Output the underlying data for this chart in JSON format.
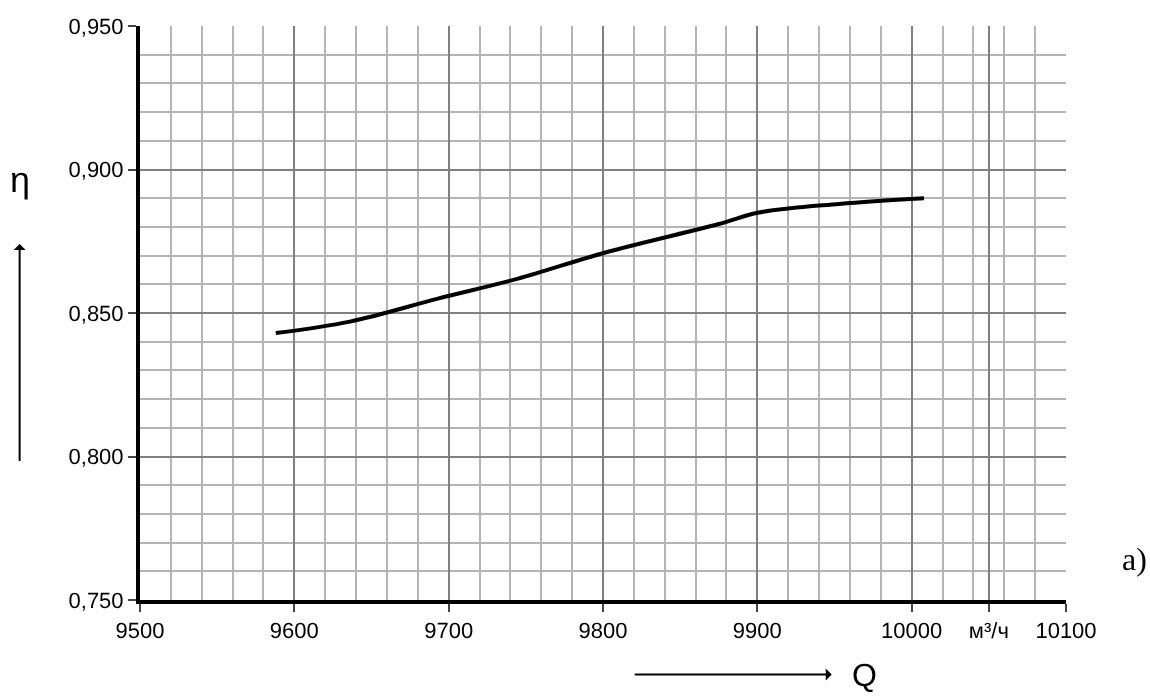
{
  "chart_data": {
    "type": "line",
    "xlabel": "Q",
    "ylabel": "η",
    "x": [
      9588,
      9636,
      9693,
      9745,
      9801,
      9875,
      9901,
      9953,
      10008
    ],
    "series": [
      {
        "color": "#000000",
        "values": [
          0.843,
          0.847,
          0.855,
          0.862,
          0.871,
          0.881,
          0.885,
          0.888,
          0.89
        ]
      }
    ],
    "xlim": [
      9500,
      10100
    ],
    "ylim": [
      0.75,
      0.95
    ],
    "xticks": [
      9500,
      9600,
      9700,
      9800,
      9900,
      10000,
      {
        "value": 10050,
        "label": "м³/ч"
      },
      10100
    ],
    "yticks": [
      {
        "value": 0.75,
        "label": "0,750"
      },
      {
        "value": 0.8,
        "label": "0,800"
      },
      {
        "value": 0.85,
        "label": "0,850"
      },
      {
        "value": 0.9,
        "label": "0,900"
      },
      {
        "value": 0.95,
        "label": "0,950"
      }
    ],
    "annotations": [
      "a)"
    ],
    "grid": true,
    "marker": "none",
    "line_style": "solid"
  }
}
